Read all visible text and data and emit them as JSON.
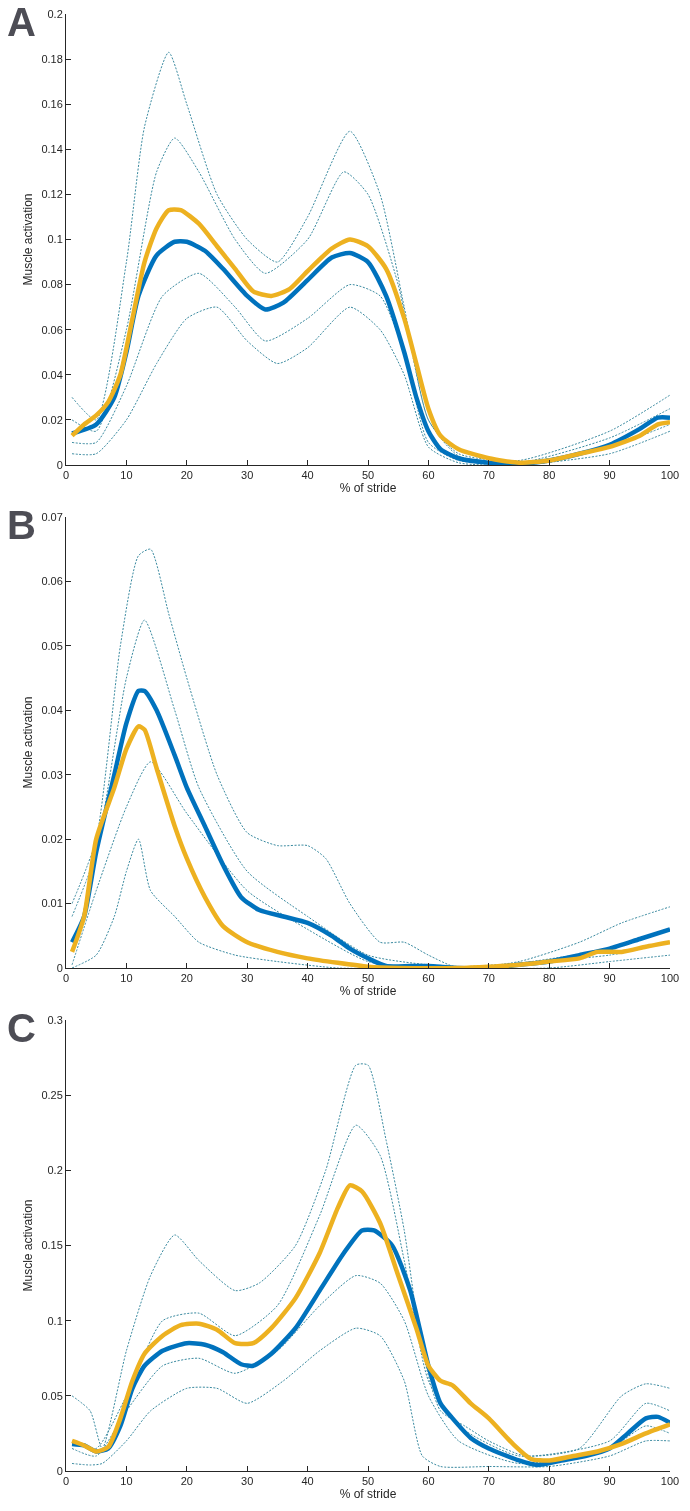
{
  "chart_data": [
    {
      "type": "line",
      "title": "A",
      "xlabel": "% of stride",
      "ylabel": "Muscle activation",
      "xlim": [
        0,
        100
      ],
      "xticks": [
        0,
        10,
        20,
        30,
        40,
        50,
        60,
        70,
        80,
        90,
        100
      ],
      "ylim": [
        0,
        0.2
      ],
      "yticks": [
        0,
        0.02,
        0.04,
        0.06,
        0.08,
        0.1,
        0.12,
        0.14,
        0.16,
        0.18,
        0.2
      ],
      "grid": false,
      "marker": "none",
      "series": [
        {
          "color": "#3a8aa0",
          "line_style": "dotted",
          "x": [
            1,
            5,
            10,
            13,
            17,
            20,
            25,
            30,
            35,
            40,
            47,
            52,
            56,
            60,
            65,
            75,
            90,
            100
          ],
          "values": [
            0.03,
            0.02,
            0.09,
            0.15,
            0.183,
            0.16,
            0.12,
            0.1,
            0.09,
            0.11,
            0.148,
            0.12,
            0.07,
            0.02,
            0.005,
            0.002,
            0.015,
            0.031
          ]
        },
        {
          "color": "#3a8aa0",
          "line_style": "dotted",
          "x": [
            1,
            5,
            10,
            15,
            20,
            25,
            30,
            35,
            40,
            47,
            52,
            56,
            60,
            65,
            75,
            90,
            100
          ],
          "values": [
            0.005,
            0.005,
            0.02,
            0.045,
            0.065,
            0.07,
            0.055,
            0.045,
            0.052,
            0.07,
            0.06,
            0.04,
            0.008,
            0.001,
            0,
            0.005,
            0.015
          ]
        },
        {
          "color": "#3a8aa0",
          "line_style": "dotted",
          "x": [
            1,
            5,
            10,
            15,
            18,
            22,
            28,
            33,
            40,
            46,
            50,
            55,
            60,
            65,
            75,
            90,
            100
          ],
          "values": [
            0.02,
            0.015,
            0.06,
            0.13,
            0.145,
            0.13,
            0.1,
            0.085,
            0.1,
            0.13,
            0.12,
            0.08,
            0.02,
            0.004,
            0.001,
            0.012,
            0.025
          ]
        },
        {
          "color": "#3a8aa0",
          "line_style": "dotted",
          "x": [
            1,
            5,
            10,
            16,
            22,
            28,
            33,
            40,
            47,
            52,
            56,
            60,
            65,
            75,
            90,
            100
          ],
          "values": [
            0.01,
            0.01,
            0.035,
            0.075,
            0.085,
            0.07,
            0.055,
            0.065,
            0.08,
            0.075,
            0.05,
            0.01,
            0.002,
            0.001,
            0.008,
            0.018
          ]
        },
        {
          "color": "#0072bd",
          "line_style": "solid",
          "x": [
            1,
            5,
            8,
            10,
            12,
            15,
            18,
            20,
            23,
            26,
            30,
            33,
            36,
            40,
            44,
            47,
            50,
            53,
            56,
            58,
            60,
            62,
            65,
            70,
            75,
            80,
            85,
            90,
            95,
            98,
            100
          ],
          "values": [
            0.014,
            0.018,
            0.03,
            0.05,
            0.075,
            0.093,
            0.099,
            0.099,
            0.095,
            0.087,
            0.075,
            0.069,
            0.072,
            0.082,
            0.092,
            0.094,
            0.09,
            0.075,
            0.05,
            0.03,
            0.015,
            0.007,
            0.003,
            0.001,
            0.0005,
            0.002,
            0.005,
            0.009,
            0.016,
            0.021,
            0.021
          ]
        },
        {
          "color": "#edb120",
          "line_style": "solid",
          "x": [
            1,
            3,
            5,
            7,
            9,
            11,
            13,
            15,
            17,
            19,
            22,
            25,
            28,
            31,
            34,
            37,
            40,
            44,
            47,
            50,
            53,
            56,
            58,
            60,
            62,
            65,
            70,
            75,
            80,
            85,
            90,
            95,
            98,
            100
          ],
          "values": [
            0.013,
            0.018,
            0.022,
            0.028,
            0.04,
            0.065,
            0.09,
            0.105,
            0.113,
            0.113,
            0.107,
            0.097,
            0.087,
            0.077,
            0.075,
            0.078,
            0.086,
            0.096,
            0.1,
            0.097,
            0.087,
            0.065,
            0.045,
            0.025,
            0.013,
            0.007,
            0.003,
            0.001,
            0.002,
            0.005,
            0.008,
            0.013,
            0.018,
            0.019
          ]
        }
      ]
    },
    {
      "type": "line",
      "title": "B",
      "xlabel": "% of stride",
      "ylabel": "Muscle activation",
      "xlim": [
        0,
        100
      ],
      "xticks": [
        0,
        10,
        20,
        30,
        40,
        50,
        60,
        70,
        80,
        90,
        100
      ],
      "ylim": [
        0,
        0.07
      ],
      "yticks": [
        0,
        0.01,
        0.02,
        0.03,
        0.04,
        0.05,
        0.06,
        0.07
      ],
      "grid": false,
      "marker": "none",
      "series": [
        {
          "color": "#3a8aa0",
          "line_style": "dotted",
          "x": [
            1,
            5,
            9,
            12,
            14,
            17,
            20,
            25,
            30,
            35,
            40,
            43,
            47,
            52,
            56,
            60,
            65,
            75,
            85,
            92,
            100
          ],
          "values": [
            0.01,
            0.02,
            0.05,
            0.064,
            0.065,
            0.055,
            0.045,
            0.03,
            0.021,
            0.019,
            0.019,
            0.017,
            0.01,
            0.004,
            0.004,
            0.002,
            0,
            0.001,
            0.004,
            0.007,
            0.0095
          ]
        },
        {
          "color": "#3a8aa0",
          "line_style": "dotted",
          "x": [
            1,
            5,
            8,
            10,
            12,
            14,
            18,
            22,
            28,
            35,
            45,
            60,
            80,
            90,
            100
          ],
          "values": [
            0,
            0.002,
            0.008,
            0.015,
            0.02,
            0.012,
            0.008,
            0.004,
            0.002,
            0.001,
            0,
            0,
            0,
            0.001,
            0.002
          ]
        },
        {
          "color": "#3a8aa0",
          "line_style": "dotted",
          "x": [
            1,
            5,
            10,
            13,
            18,
            22,
            30,
            40,
            50,
            60,
            70,
            90,
            100
          ],
          "values": [
            0.008,
            0.018,
            0.045,
            0.054,
            0.04,
            0.028,
            0.015,
            0.008,
            0.002,
            0.0005,
            0.0002,
            0.003,
            0.006
          ]
        },
        {
          "color": "#3a8aa0",
          "line_style": "dotted",
          "x": [
            1,
            5,
            10,
            14,
            20,
            30,
            40,
            50,
            60,
            90,
            100
          ],
          "values": [
            0.0005,
            0.012,
            0.025,
            0.032,
            0.024,
            0.012,
            0.006,
            0.001,
            0,
            0.002,
            0.004
          ]
        },
        {
          "color": "#0072bd",
          "line_style": "solid",
          "x": [
            1,
            3,
            5,
            8,
            10,
            12,
            13,
            15,
            18,
            20,
            23,
            26,
            29,
            32,
            36,
            40,
            44,
            47,
            50,
            53,
            57,
            60,
            62,
            65,
            70,
            75,
            80,
            85,
            90,
            95,
            100
          ],
          "values": [
            0.004,
            0.008,
            0.018,
            0.03,
            0.038,
            0.043,
            0.043,
            0.04,
            0.033,
            0.028,
            0.022,
            0.016,
            0.011,
            0.009,
            0.008,
            0.007,
            0.005,
            0.003,
            0.0015,
            0.0003,
            0.0003,
            0.0003,
            0.0002,
            0,
            0,
            0.0005,
            0.001,
            0.002,
            0.003,
            0.0045,
            0.006
          ]
        },
        {
          "color": "#edb120",
          "line_style": "solid",
          "x": [
            1,
            3,
            5,
            8,
            10,
            12,
            13,
            15,
            18,
            20,
            23,
            26,
            30,
            35,
            40,
            45,
            50,
            55,
            65,
            70,
            75,
            80,
            85,
            88,
            92,
            96,
            100
          ],
          "values": [
            0.0025,
            0.008,
            0.02,
            0.028,
            0.034,
            0.0375,
            0.037,
            0.031,
            0.022,
            0.017,
            0.011,
            0.0065,
            0.004,
            0.0025,
            0.0015,
            0.0008,
            0.0002,
            0,
            0,
            0.0002,
            0.0005,
            0.001,
            0.0015,
            0.0025,
            0.0025,
            0.0033,
            0.004
          ]
        }
      ]
    },
    {
      "type": "line",
      "title": "C",
      "xlabel": "% of stride",
      "ylabel": "Muscle activation",
      "xlim": [
        0,
        100
      ],
      "xticks": [
        0,
        10,
        20,
        30,
        40,
        50,
        60,
        70,
        80,
        90,
        100
      ],
      "ylim": [
        0,
        0.3
      ],
      "yticks": [
        0,
        0.05,
        0.1,
        0.15,
        0.2,
        0.25,
        0.3
      ],
      "grid": false,
      "marker": "none",
      "series": [
        {
          "color": "#3a8aa0",
          "line_style": "dotted",
          "x": [
            1,
            4,
            6,
            10,
            14,
            18,
            22,
            28,
            32,
            38,
            43,
            48,
            50,
            53,
            56,
            59,
            62,
            66,
            70,
            76,
            85,
            92,
            96,
            100
          ],
          "values": [
            0.05,
            0.04,
            0.015,
            0.08,
            0.13,
            0.157,
            0.14,
            0.12,
            0.125,
            0.15,
            0.2,
            0.27,
            0.27,
            0.22,
            0.16,
            0.08,
            0.04,
            0.03,
            0.02,
            0.01,
            0.015,
            0.05,
            0.058,
            0.055
          ]
        },
        {
          "color": "#3a8aa0",
          "line_style": "dotted",
          "x": [
            1,
            4,
            6,
            10,
            14,
            20,
            25,
            30,
            36,
            42,
            48,
            52,
            56,
            59,
            62,
            70,
            80,
            90,
            96,
            100
          ],
          "values": [
            0.005,
            0.004,
            0.005,
            0.02,
            0.04,
            0.055,
            0.055,
            0.045,
            0.06,
            0.08,
            0.095,
            0.09,
            0.06,
            0.01,
            0.003,
            0.003,
            0.003,
            0.01,
            0.02,
            0.02
          ]
        },
        {
          "color": "#3a8aa0",
          "line_style": "dotted",
          "x": [
            1,
            5,
            10,
            16,
            22,
            28,
            35,
            42,
            48,
            52,
            56,
            60,
            65,
            75,
            90,
            96,
            100
          ],
          "values": [
            0.02,
            0.015,
            0.05,
            0.1,
            0.105,
            0.09,
            0.11,
            0.17,
            0.23,
            0.21,
            0.14,
            0.06,
            0.03,
            0.01,
            0.02,
            0.045,
            0.04
          ]
        },
        {
          "color": "#3a8aa0",
          "line_style": "dotted",
          "x": [
            1,
            5,
            10,
            16,
            22,
            28,
            35,
            42,
            48,
            52,
            56,
            60,
            65,
            75,
            90,
            96,
            100
          ],
          "values": [
            0.015,
            0.01,
            0.04,
            0.07,
            0.075,
            0.065,
            0.08,
            0.11,
            0.13,
            0.125,
            0.1,
            0.05,
            0.02,
            0.005,
            0.015,
            0.03,
            0.025
          ]
        },
        {
          "color": "#0072bd",
          "line_style": "solid",
          "x": [
            1,
            3,
            5,
            7,
            9,
            11,
            13,
            16,
            20,
            23,
            26,
            29,
            31,
            34,
            38,
            42,
            46,
            49,
            51,
            54,
            57,
            60,
            62,
            64,
            67,
            70,
            75,
            78,
            82,
            86,
            90,
            93,
            96,
            98,
            100
          ],
          "values": [
            0.018,
            0.017,
            0.013,
            0.015,
            0.03,
            0.055,
            0.07,
            0.08,
            0.085,
            0.084,
            0.079,
            0.071,
            0.07,
            0.078,
            0.095,
            0.12,
            0.145,
            0.16,
            0.16,
            0.15,
            0.12,
            0.07,
            0.045,
            0.035,
            0.022,
            0.015,
            0.007,
            0.004,
            0.007,
            0.01,
            0.015,
            0.025,
            0.035,
            0.036,
            0.032
          ]
        },
        {
          "color": "#edb120",
          "line_style": "solid",
          "x": [
            1,
            3,
            5,
            7,
            9,
            11,
            13,
            16,
            19,
            22,
            25,
            28,
            31,
            34,
            38,
            42,
            45,
            47,
            49,
            52,
            55,
            58,
            60,
            62,
            64,
            67,
            70,
            74,
            77,
            80,
            84,
            88,
            92,
            96,
            100
          ],
          "values": [
            0.02,
            0.017,
            0.013,
            0.016,
            0.035,
            0.06,
            0.078,
            0.09,
            0.097,
            0.098,
            0.094,
            0.085,
            0.085,
            0.095,
            0.115,
            0.145,
            0.175,
            0.19,
            0.186,
            0.165,
            0.13,
            0.095,
            0.07,
            0.06,
            0.057,
            0.045,
            0.035,
            0.018,
            0.008,
            0.007,
            0.01,
            0.013,
            0.018,
            0.025,
            0.031
          ]
        }
      ]
    }
  ]
}
